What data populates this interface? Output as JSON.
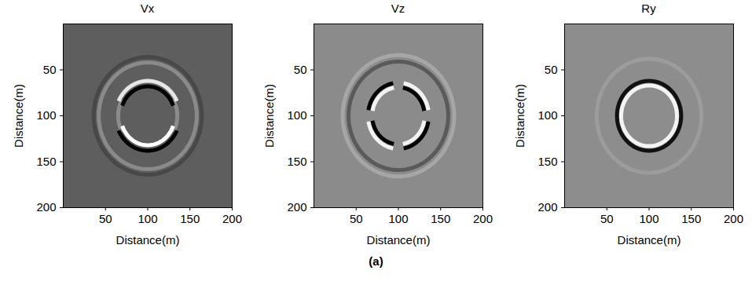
{
  "chart_data": [
    {
      "type": "wavefield",
      "title": "Vx",
      "xlabel": "Distance(m)",
      "ylabel": "Distance(m)",
      "xlim": [
        0,
        200
      ],
      "ylim": [
        200,
        0
      ],
      "xticks": [
        50,
        100,
        150,
        200
      ],
      "yticks": [
        50,
        100,
        150,
        200
      ],
      "color": "#5e5e5e",
      "center": [
        100,
        100
      ],
      "arcs": [
        {
          "radius": 64,
          "from": 0,
          "to": 360,
          "color": "#484848"
        },
        {
          "radius": 58,
          "from": 0,
          "to": 360,
          "color": "#8a8a8a"
        },
        {
          "radius": 35,
          "from": 150,
          "to": 210,
          "color": "#8c8c8c"
        },
        {
          "radius": 35,
          "from": -30,
          "to": 30,
          "color": "#8c8c8c"
        },
        {
          "radius": 38,
          "from": 205,
          "to": 335,
          "color": "#e6e6e6"
        },
        {
          "radius": 32,
          "from": 200,
          "to": 340,
          "color": "#000000"
        },
        {
          "radius": 32,
          "from": 20,
          "to": 160,
          "color": "#ffffff"
        },
        {
          "radius": 38,
          "from": 25,
          "to": 155,
          "color": "#000000"
        }
      ]
    },
    {
      "type": "wavefield",
      "title": "Vz",
      "xlabel": "Distance(m)",
      "ylabel": "Distance(m)",
      "xlim": [
        0,
        200
      ],
      "ylim": [
        200,
        0
      ],
      "xticks": [
        50,
        100,
        150,
        200
      ],
      "yticks": [
        50,
        100,
        150,
        200
      ],
      "color": "#8b8b8b",
      "center": [
        100,
        100
      ],
      "arcs": [
        {
          "radius": 66,
          "from": 0,
          "to": 360,
          "color": "#a6a6a6"
        },
        {
          "radius": 59,
          "from": 0,
          "to": 360,
          "color": "#5a5a5a"
        },
        {
          "radius": 36,
          "from": 190,
          "to": 260,
          "color": "#000000"
        },
        {
          "radius": 31,
          "from": 190,
          "to": 260,
          "color": "#f2f2f2"
        },
        {
          "radius": 36,
          "from": 280,
          "to": 350,
          "color": "#f2f2f2"
        },
        {
          "radius": 31,
          "from": 280,
          "to": 350,
          "color": "#000000"
        },
        {
          "radius": 36,
          "from": 10,
          "to": 80,
          "color": "#000000"
        },
        {
          "radius": 31,
          "from": 10,
          "to": 80,
          "color": "#f2f2f2"
        },
        {
          "radius": 36,
          "from": 100,
          "to": 170,
          "color": "#f2f2f2"
        },
        {
          "radius": 31,
          "from": 100,
          "to": 170,
          "color": "#000000"
        }
      ]
    },
    {
      "type": "wavefield",
      "title": "Ry",
      "xlabel": "Distance(m)",
      "ylabel": "Distance(m)",
      "xlim": [
        0,
        200
      ],
      "ylim": [
        200,
        0
      ],
      "xticks": [
        50,
        100,
        150,
        200
      ],
      "yticks": [
        50,
        100,
        150,
        200
      ],
      "color": "#8d8d8d",
      "center": [
        100,
        100
      ],
      "arcs": [
        {
          "radius": 62,
          "from": 0,
          "to": 360,
          "color": "#9c9c9c"
        },
        {
          "radius": 38,
          "from": 0,
          "to": 360,
          "color": "#111111"
        },
        {
          "radius": 33,
          "from": 0,
          "to": 360,
          "color": "#f4f4f4"
        }
      ]
    }
  ],
  "caption": "(a)"
}
